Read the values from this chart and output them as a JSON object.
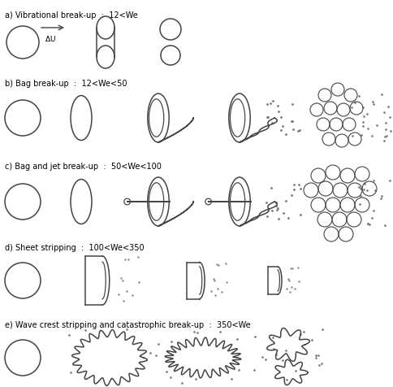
{
  "title_a": "a) Vibrational break-up  :  12<We",
  "title_b": "b) Bag break-up  :  12<We<50",
  "title_c": "c) Bag and jet break-up  :  50<We<100",
  "title_d": "d) Sheet stripping  :  100<We<350",
  "title_e": "e) Wave crest stripping and catastrophic break-up  :  350<We",
  "bg_color": "#ffffff",
  "line_color": "#444444",
  "text_color": "#000000",
  "figsize": [
    4.84,
    4.76
  ],
  "dpi": 100
}
